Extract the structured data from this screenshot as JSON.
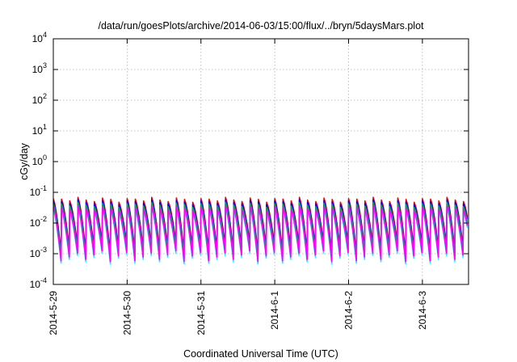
{
  "chart_data": {
    "type": "line",
    "title": "/data/run/goesPlots/archive/2014-06-03/15:00/flux/../bryn/5daysMars.plot",
    "xlabel": "Coordinated Universal Time (UTC)",
    "ylabel": "cGy/day",
    "yscale": "log",
    "ylim": [
      0.0001,
      10000
    ],
    "xlim": [
      "2014-05-29 00:00",
      "2014-06-03 15:00"
    ],
    "grid": true,
    "y_ticks": [
      {
        "base": "10",
        "exp": "-4"
      },
      {
        "base": "10",
        "exp": "-3"
      },
      {
        "base": "10",
        "exp": "-2"
      },
      {
        "base": "10",
        "exp": "-1"
      },
      {
        "base": "10",
        "exp": "0"
      },
      {
        "base": "10",
        "exp": "1"
      },
      {
        "base": "10",
        "exp": "2"
      },
      {
        "base": "10",
        "exp": "3"
      },
      {
        "base": "10",
        "exp": "4"
      }
    ],
    "x_ticks": [
      "2014-5-29",
      "2014-5-30",
      "2014-5-31",
      "2014-6-1",
      "2014-6-2",
      "2014-6-3"
    ],
    "cycles_per_day": 9,
    "cycle_peaks": [
      0.05,
      0.048,
      0.042,
      0.055,
      0.045,
      0.04,
      0.052,
      0.047,
      0.038
    ],
    "cycle_troughs": [
      0.0009,
      0.0012,
      0.0016,
      0.001,
      0.0014,
      0.0019,
      0.00085,
      0.0013,
      0.0017
    ],
    "series": [
      {
        "color": "#ff0000",
        "scale": 1.25
      },
      {
        "color": "#0000ff",
        "scale": 1.05
      },
      {
        "color": "#00ffff",
        "scale": 0.55
      },
      {
        "color": "#00aa44",
        "scale": 0.85
      },
      {
        "color": "#ff00ff",
        "scale": 0.65
      }
    ]
  }
}
